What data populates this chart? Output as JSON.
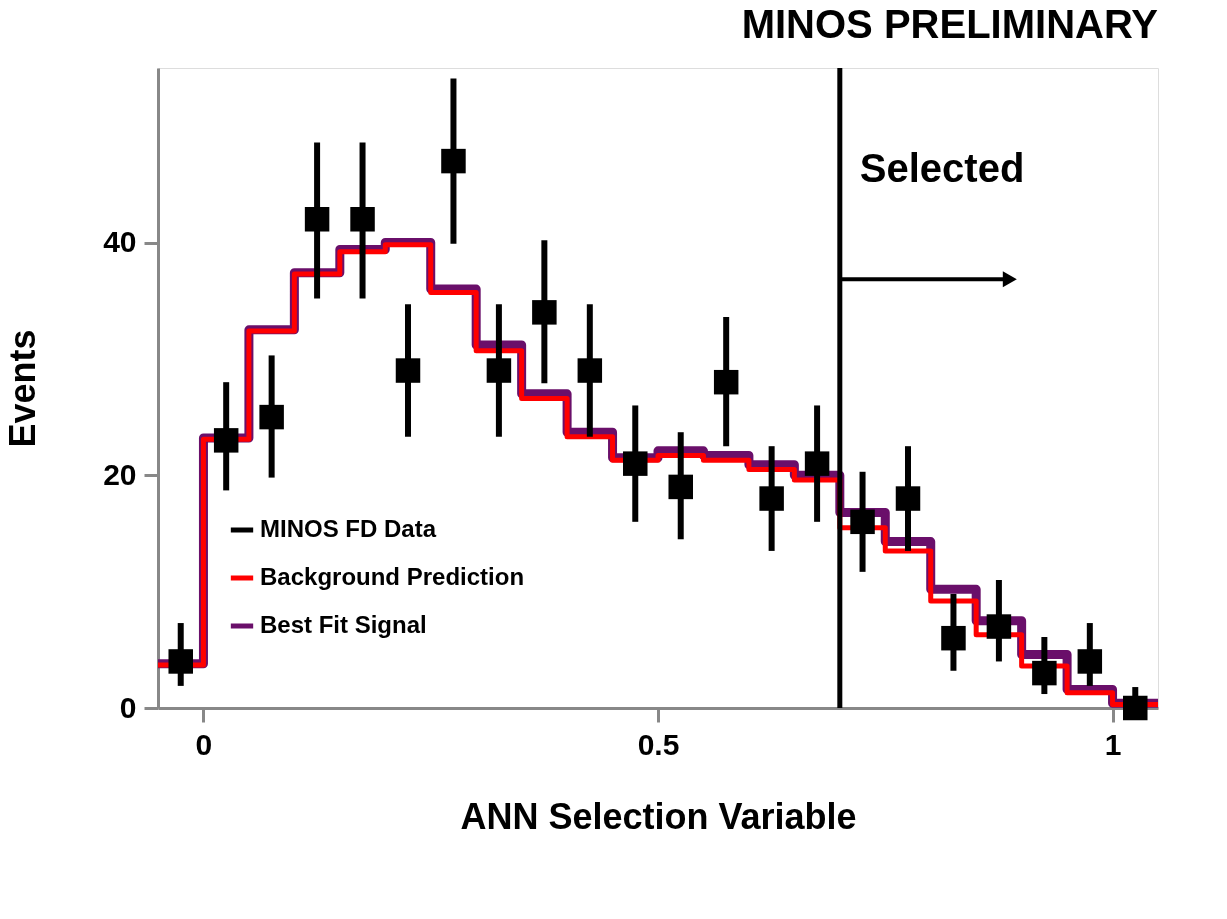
{
  "chart_data": {
    "type": "histogram",
    "title": "MINOS PRELIMINARY",
    "xlabel": "ANN Selection Variable",
    "ylabel": "Events",
    "bins": [
      -0.05,
      0,
      0.05,
      0.1,
      0.15,
      0.2,
      0.25,
      0.3,
      0.35,
      0.4,
      0.45,
      0.5,
      0.55,
      0.6,
      0.65,
      0.7,
      0.75,
      0.8,
      0.85,
      0.9,
      0.95,
      1.0,
      1.05
    ],
    "series": [
      {
        "name": "MINOS FD Data",
        "type": "scatter",
        "color": "#000000",
        "x": [
          -0.025,
          0.025,
          0.075,
          0.125,
          0.175,
          0.225,
          0.275,
          0.325,
          0.375,
          0.425,
          0.475,
          0.525,
          0.575,
          0.625,
          0.675,
          0.725,
          0.775,
          0.825,
          0.875,
          0.925,
          0.975,
          1.025
        ],
        "values": [
          4,
          23,
          25,
          42,
          42,
          29,
          47,
          29,
          34,
          29,
          21,
          19,
          28,
          18,
          21,
          16,
          18,
          6,
          7,
          3,
          4,
          0
        ],
        "errors": [
          [
            1.9,
            7.3
          ],
          [
            18.7,
            28
          ],
          [
            19.8,
            30.3
          ],
          [
            35.2,
            48.6
          ],
          [
            35.2,
            48.6
          ],
          [
            23.3,
            34.7
          ],
          [
            39.9,
            54.1
          ],
          [
            23.3,
            34.7
          ],
          [
            27.9,
            40.2
          ],
          [
            23.3,
            34.7
          ],
          [
            16,
            26
          ],
          [
            14.5,
            23.7
          ],
          [
            22.5,
            33.6
          ],
          [
            13.5,
            22.5
          ],
          [
            16,
            26
          ],
          [
            11.7,
            20.3
          ],
          [
            13.5,
            22.5
          ],
          [
            3.2,
            9.8
          ],
          [
            4,
            11
          ],
          [
            1.2,
            6.1
          ],
          [
            1.9,
            7.3
          ],
          [
            0,
            1.8
          ]
        ]
      },
      {
        "name": "Background Prediction",
        "color": "#ff0000",
        "values": [
          3.7,
          23.1,
          32.4,
          37.3,
          39.2,
          39.8,
          35.7,
          30.7,
          26.6,
          23.3,
          21.3,
          21.7,
          21.3,
          20.5,
          19.6,
          15.5,
          13.5,
          9.2,
          6.3,
          3.6,
          1.3,
          0.3
        ]
      },
      {
        "name": "Best Fit Signal",
        "color": "#6a0f6a",
        "values": [
          3.8,
          23.2,
          32.5,
          37.4,
          39.4,
          40.0,
          36.0,
          31.2,
          27.0,
          23.7,
          21.5,
          22.1,
          21.7,
          20.9,
          20.0,
          16.8,
          14.3,
          10.2,
          7.5,
          4.6,
          1.6,
          0.4
        ]
      }
    ],
    "marker": "square",
    "xlim": [
      -0.05,
      1.05
    ],
    "xticks": [
      0,
      0.5,
      1
    ],
    "ylim": [
      0,
      55
    ],
    "yticks": [
      0,
      20,
      40
    ],
    "ref_lines": [
      {
        "axis": "x",
        "value": 0.7,
        "label": "Selected",
        "color": "#000000"
      }
    ],
    "grid": false,
    "legend": "bottom left"
  }
}
